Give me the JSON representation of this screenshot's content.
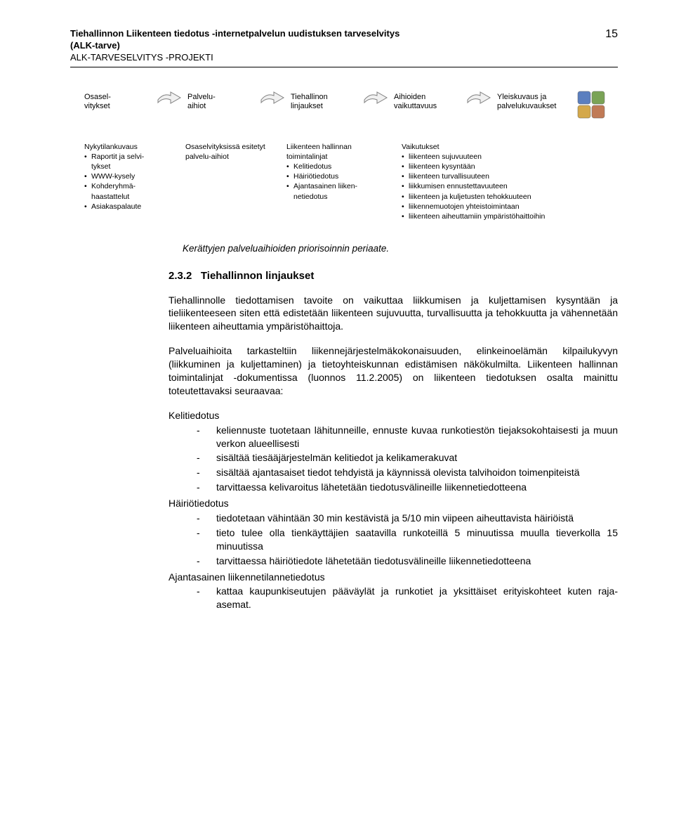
{
  "header": {
    "title_line1": "Tiehallinnon Liikenteen tiedotus -internetpalvelun uudistuksen tarveselvitys",
    "title_line2": "(ALK-tarve)",
    "subtitle": "ALK-TARVESELVITYS -PROJEKTI",
    "page_number": "15"
  },
  "flow": {
    "boxes": [
      "Osasel-\nvitykset",
      "Palvelu-\naihiot",
      "Tiehallinon\nlinjaukset",
      "Aihioiden\nvaikuttavuus",
      "Yleiskuvaus ja\npalvelukuvaukset"
    ],
    "arrow_stroke": "#808080",
    "arrow_fill": "#f0f0f0",
    "grid_colors": [
      "#5b7fbf",
      "#7aa356",
      "#d4a84a",
      "#c07a56"
    ]
  },
  "columns": [
    {
      "plain": [
        "Nykytilankuvaus"
      ],
      "bullets": [
        "Raportit ja selvi-\ntykset",
        "WWW-kysely",
        "Kohderyhmä-\nhaastattelut",
        "Asiakaspalaute"
      ]
    },
    {
      "plain": [
        "Osaselvityksissä esitetyt palvelu-aihiot"
      ],
      "bullets": []
    },
    {
      "plain": [
        "Liikenteen hallinnan toimintalinjat"
      ],
      "bullets": [
        "Kelitiedotus",
        "Häiriötiedotus",
        "Ajantasainen liiken-\nnetiedotus"
      ]
    },
    {
      "plain": [
        "Vaikutukset"
      ],
      "bullets": [
        "liikenteen sujuvuuteen",
        "liikenteen kysyntään",
        "liikenteen turvallisuuteen",
        "liikkumisen ennustettavuuteen",
        "liikenteen ja kuljetusten tehokkuuteen",
        "liikennemuotojen yhteistoimintaan",
        "liikenteen aiheuttamiin ympäristöhaittoihin"
      ]
    }
  ],
  "caption": "Kerättyjen palveluaihioiden priorisoinnin periaate.",
  "section": {
    "number": "2.3.2",
    "title": "Tiehallinnon linjaukset"
  },
  "para1": "Tiehallinnolle tiedottamisen tavoite on vaikuttaa liikkumisen ja kuljettamisen kysyntään ja tieliikenteeseen siten että edistetään liikenteen sujuvuutta, turvallisuutta ja tehokkuutta ja vähennetään liikenteen aiheuttamia ympäristöhaittoja.",
  "para2": "Palveluaihioita tarkasteltiin liikennejärjestelmäkokonaisuuden, elinkeinoelämän kilpailukyvyn (liikkuminen ja kuljettaminen) ja tietoyhteiskunnan edistämisen näkökulmilta. Liikenteen hallinnan toimintalinjat -dokumentissa (luonnos 11.2.2005) on liikenteen tiedotuksen osalta mainittu toteutettavaksi seuraavaa:",
  "groups": [
    {
      "head": "Kelitiedotus",
      "items": [
        "keliennuste tuotetaan lähitunneille, ennuste kuvaa runkotiestön tiejaksokohtaisesti ja muun verkon alueellisesti",
        "sisältää tiesääjärjestelmän kelitiedot ja kelikamerakuvat",
        "sisältää ajantasaiset tiedot tehdyistä ja käynnissä olevista talvihoidon toimenpiteistä",
        "tarvittaessa kelivaroitus lähetetään tiedotusvälineille liikennetiedotteena"
      ]
    },
    {
      "head": "Häiriötiedotus",
      "items": [
        "tiedotetaan vähintään 30 min kestävistä ja 5/10 min viipeen aiheuttavista häiriöistä",
        "tieto tulee olla tienkäyttäjien saatavilla runkoteillä 5 minuutissa muulla tieverkolla 15 minuutissa",
        "tarvittaessa häiriötiedote lähetetään tiedotusvälineille liikennetiedotteena"
      ]
    },
    {
      "head": "Ajantasainen liikennetilannetiedotus",
      "items": [
        "kattaa kaupunkiseutujen pääväylät ja runkotiet ja yksittäiset erityiskohteet kuten raja-asemat."
      ]
    }
  ]
}
